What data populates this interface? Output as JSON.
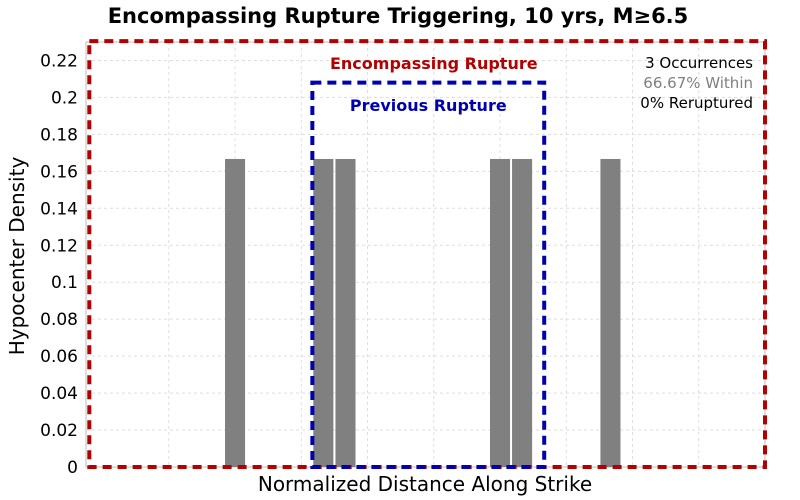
{
  "chart_data": {
    "type": "bar",
    "title": "Encompassing Rupture Triggering, 10 yrs, M≥6.5",
    "xlabel": "Normalized Distance Along Strike",
    "ylabel": "Hypocenter Density",
    "xlim": [
      -0.025,
      1.0
    ],
    "ylim": [
      0,
      0.23
    ],
    "ytick_labels": [
      "0",
      "0.02",
      "0.04",
      "0.06",
      "0.08",
      "0.1",
      "0.12",
      "0.14",
      "0.16",
      "0.18",
      "0.2",
      "0.22"
    ],
    "grid": true,
    "bin_width": 0.0333,
    "bars": [
      {
        "x": 0.2,
        "value": 0.1667
      },
      {
        "x": 0.3333,
        "value": 0.1667
      },
      {
        "x": 0.3667,
        "value": 0.1667
      },
      {
        "x": 0.6,
        "value": 0.1667
      },
      {
        "x": 0.6333,
        "value": 0.1667
      },
      {
        "x": 0.7667,
        "value": 0.1667
      }
    ],
    "bar_color": "#808080",
    "regions": [
      {
        "label": "Encompassing Rupture",
        "x": [
          -0.02,
          1.0
        ],
        "top": 0.2305,
        "color": "#b30000"
      },
      {
        "label": "Previous Rupture",
        "x": [
          0.3167,
          0.6667
        ],
        "top": 0.208,
        "color": "#0000b3"
      }
    ],
    "annotations": [
      {
        "text": "3 Occurrences",
        "color": "#000000"
      },
      {
        "text": "66.67% Within",
        "color": "#808080"
      },
      {
        "text": "0% Reruptured",
        "color": "#000000"
      }
    ]
  }
}
